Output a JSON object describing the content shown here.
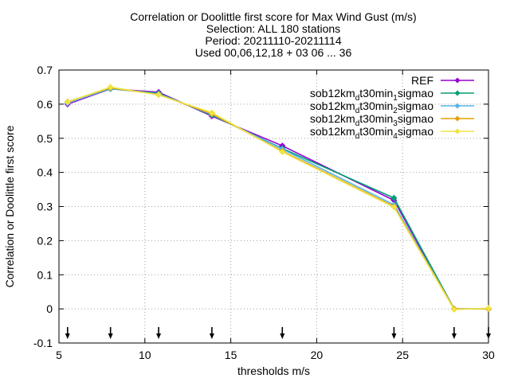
{
  "chart_data": {
    "type": "line",
    "title_lines": [
      "Correlation or Doolittle first score  for Max Wind Gust (m/s)",
      "Selection: ALL    180 stations",
      "Period: 20211110-20211114",
      "Used 00,06,12,18 + 03 06 ... 36"
    ],
    "xlabel": "thresholds m/s",
    "ylabel": "Correlation or Doolittle first score",
    "xlim": [
      5,
      30
    ],
    "ylim": [
      -0.1,
      0.7
    ],
    "xticks": [
      5,
      10,
      15,
      20,
      25,
      30
    ],
    "yticks": [
      -0.1,
      0,
      0.1,
      0.2,
      0.3,
      0.4,
      0.5,
      0.6,
      0.7
    ],
    "grid": true,
    "legend_position": "top-right",
    "threshold_markers": [
      5.5,
      8,
      10.8,
      13.9,
      18,
      24.5,
      28,
      30
    ],
    "series": [
      {
        "name": "REF",
        "color": "#9400d3",
        "x": [
          5.5,
          8,
          10.8,
          13.9,
          18,
          24.5,
          28,
          30
        ],
        "y": [
          0.6,
          0.645,
          0.635,
          0.565,
          0.478,
          0.318,
          0.0,
          0.0
        ]
      },
      {
        "name": "sob12km_dt30min_1sigmao",
        "label_parts": [
          "sob12km",
          "d",
          "t30min",
          "1",
          "sigmao"
        ],
        "color": "#009e73",
        "x": [
          5.5,
          8,
          10.8,
          13.9,
          18,
          24.5,
          28,
          30
        ],
        "y": [
          0.605,
          0.645,
          0.632,
          0.568,
          0.47,
          0.325,
          0.0,
          0.0
        ]
      },
      {
        "name": "sob12km_dt30min_2sigmao",
        "label_parts": [
          "sob12km",
          "d",
          "t30min",
          "2",
          "sigmao"
        ],
        "color": "#56b4e9",
        "x": [
          5.5,
          8,
          10.8,
          13.9,
          18,
          24.5,
          28,
          30
        ],
        "y": [
          0.603,
          0.646,
          0.63,
          0.57,
          0.468,
          0.305,
          0.0,
          0.0
        ]
      },
      {
        "name": "sob12km_dt30min_3sigmao",
        "label_parts": [
          "sob12km",
          "d",
          "t30min",
          "3",
          "sigmao"
        ],
        "color": "#e69f00",
        "x": [
          5.5,
          8,
          10.8,
          13.9,
          18,
          24.5,
          28,
          30
        ],
        "y": [
          0.607,
          0.648,
          0.628,
          0.572,
          0.462,
          0.3,
          0.0,
          0.0
        ]
      },
      {
        "name": "sob12km_dt30min_4sigmao",
        "label_parts": [
          "sob12km",
          "d",
          "t30min",
          "4",
          "sigmao"
        ],
        "color": "#f0e442",
        "x": [
          5.5,
          8,
          10.8,
          13.9,
          18,
          24.5,
          28,
          30
        ],
        "y": [
          0.606,
          0.65,
          0.627,
          0.575,
          0.46,
          0.298,
          -0.002,
          0.002
        ]
      }
    ]
  }
}
